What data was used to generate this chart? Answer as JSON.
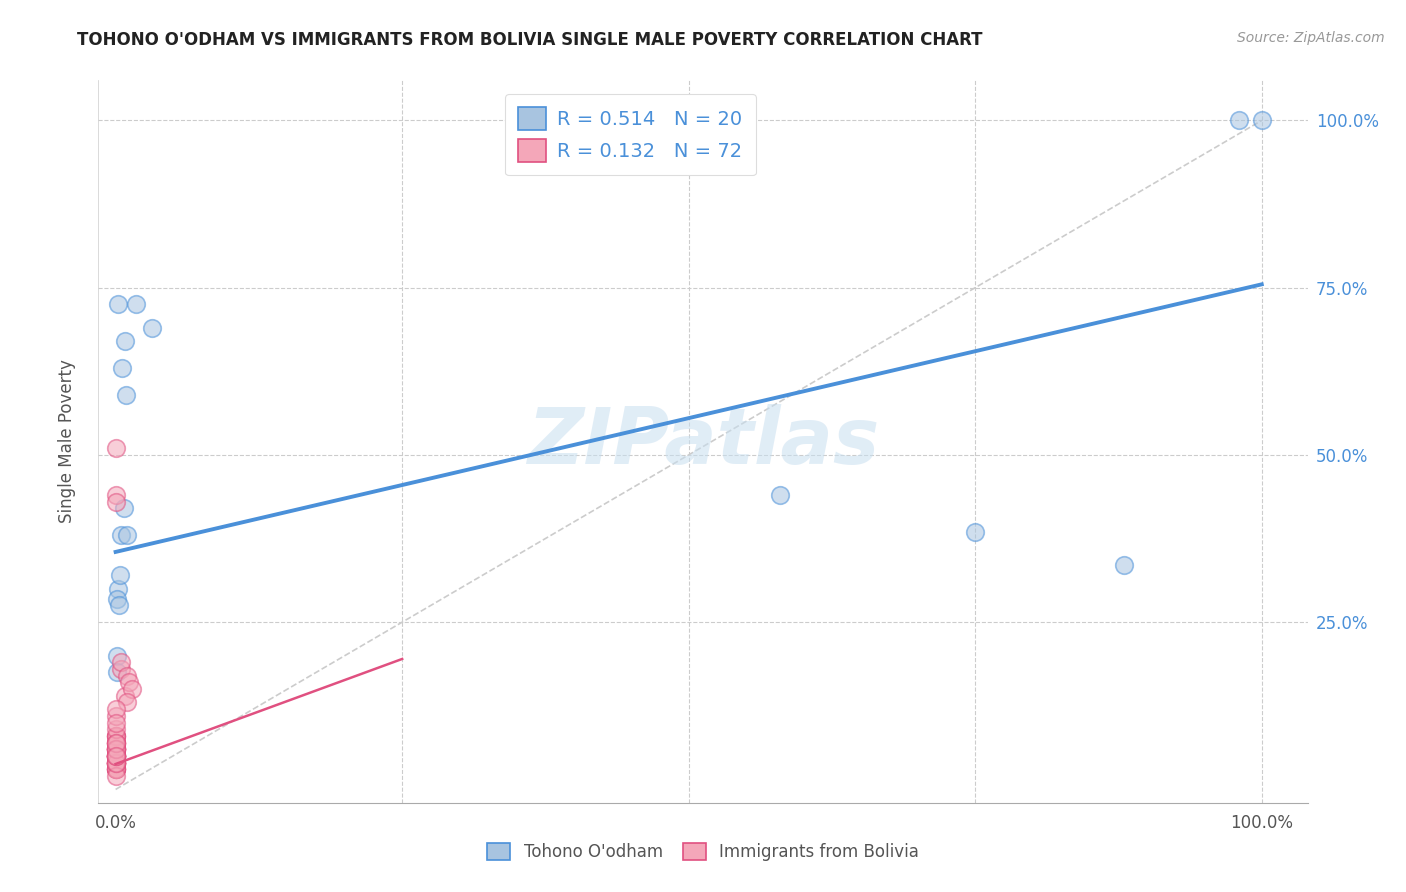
{
  "title": "TOHONO O'ODHAM VS IMMIGRANTS FROM BOLIVIA SINGLE MALE POVERTY CORRELATION CHART",
  "source": "Source: ZipAtlas.com",
  "ylabel": "Single Male Poverty",
  "watermark": "ZIPatlas",
  "background_color": "#ffffff",
  "plot_bg_color": "#ffffff",
  "grid_color": "#cccccc",
  "blue_R": 0.514,
  "blue_N": 20,
  "pink_R": 0.132,
  "pink_N": 72,
  "blue_color": "#a8c4e0",
  "blue_line_color": "#4a90d9",
  "pink_color": "#f4a7b9",
  "pink_line_color": "#e05080",
  "legend_text_color": "#4a90d9",
  "right_axis_label_color": "#4a90d9",
  "blue_scatter_x": [
    0.002,
    0.005,
    0.007,
    0.004,
    0.008,
    0.006,
    0.009,
    0.01,
    0.001,
    0.003,
    0.58,
    0.75,
    0.88,
    1.0,
    0.98,
    0.002,
    0.018,
    0.032,
    0.001,
    0.001
  ],
  "blue_scatter_y": [
    0.3,
    0.38,
    0.42,
    0.32,
    0.67,
    0.63,
    0.59,
    0.38,
    0.285,
    0.275,
    0.44,
    0.385,
    0.335,
    1.0,
    1.0,
    0.725,
    0.725,
    0.69,
    0.2,
    0.175
  ],
  "pink_scatter_x": [
    0.0,
    0.0,
    0.0,
    0.0,
    0.0,
    0.0,
    0.0,
    0.0,
    0.0,
    0.0,
    0.0,
    0.0,
    0.0,
    0.0,
    0.0,
    0.0,
    0.0,
    0.0,
    0.0,
    0.0,
    0.0,
    0.0,
    0.0,
    0.0,
    0.0,
    0.0,
    0.0,
    0.0,
    0.0,
    0.0,
    0.0,
    0.0,
    0.0,
    0.0,
    0.0,
    0.0,
    0.0,
    0.0,
    0.0,
    0.0,
    0.0,
    0.0,
    0.0,
    0.0,
    0.0,
    0.0,
    0.0,
    0.0,
    0.0,
    0.005,
    0.005,
    0.008,
    0.01,
    0.012,
    0.014,
    0.01,
    0.0,
    0.0,
    0.0,
    0.0,
    0.0,
    0.0,
    0.0,
    0.0,
    0.0,
    0.0,
    0.0,
    0.0,
    0.0,
    0.0,
    0.0,
    0.0
  ],
  "pink_scatter_y": [
    0.04,
    0.05,
    0.06,
    0.04,
    0.03,
    0.05,
    0.07,
    0.06,
    0.05,
    0.04,
    0.03,
    0.06,
    0.07,
    0.08,
    0.04,
    0.05,
    0.06,
    0.07,
    0.08,
    0.04,
    0.05,
    0.03,
    0.06,
    0.05,
    0.04,
    0.07,
    0.05,
    0.04,
    0.06,
    0.05,
    0.03,
    0.04,
    0.05,
    0.06,
    0.07,
    0.05,
    0.04,
    0.03,
    0.06,
    0.04,
    0.05,
    0.08,
    0.05,
    0.04,
    0.06,
    0.03,
    0.05,
    0.04,
    0.02,
    0.18,
    0.19,
    0.14,
    0.17,
    0.16,
    0.15,
    0.13,
    0.51,
    0.44,
    0.43,
    0.05,
    0.06,
    0.08,
    0.07,
    0.09,
    0.04,
    0.05,
    0.11,
    0.12,
    0.1,
    0.06,
    0.07,
    0.05
  ],
  "xlim": [
    -0.015,
    1.04
  ],
  "ylim": [
    -0.02,
    1.06
  ],
  "xtick_positions": [
    0.0,
    1.0
  ],
  "xtick_labels": [
    "0.0%",
    "100.0%"
  ],
  "ytick_positions": [
    0.25,
    0.5,
    0.75,
    1.0
  ],
  "ytick_labels": [
    "25.0%",
    "50.0%",
    "75.0%",
    "100.0%"
  ],
  "marker_size": 160,
  "marker_alpha": 0.55,
  "marker_linewidth": 1.2,
  "blue_trend_x_start": 0.0,
  "blue_trend_x_end": 1.0,
  "blue_trend_y_start": 0.355,
  "blue_trend_y_end": 0.755,
  "pink_trend_x_start": 0.0,
  "pink_trend_x_end": 0.25,
  "pink_trend_y_start": 0.038,
  "pink_trend_y_end": 0.195,
  "diag_line_color": "#cccccc"
}
